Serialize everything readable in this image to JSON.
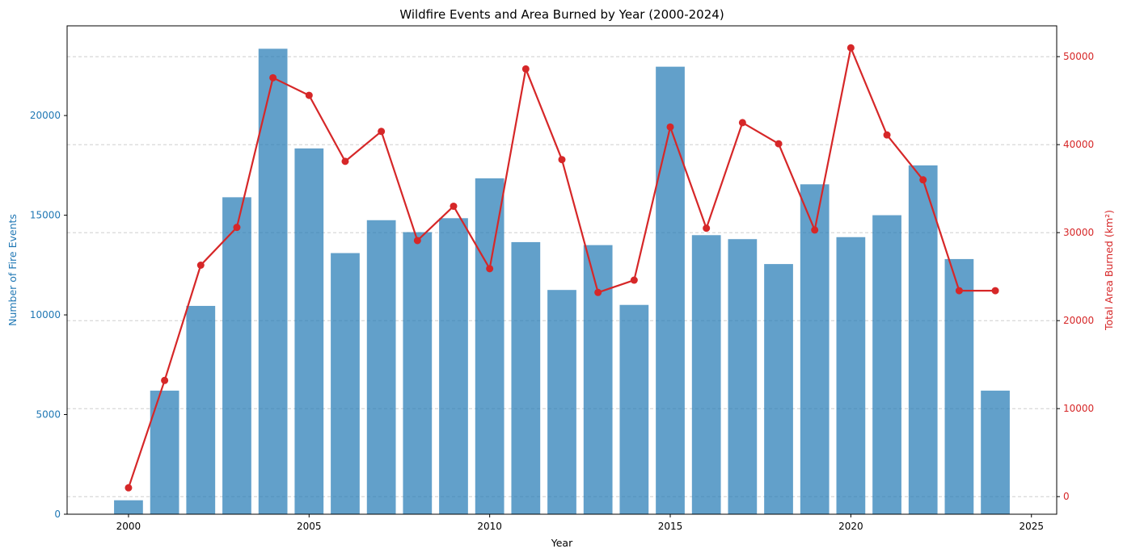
{
  "chart_data": {
    "type": "bar+line",
    "title": "Wildfire Events and Area Burned by Year (2000-2024)",
    "xlabel": "Year",
    "ylabel_left": "Number of Fire Events",
    "ylabel_right": "Total Area Burned (km²)",
    "xlim": [
      1998.3,
      2025.7
    ],
    "ylim_left": [
      0,
      24500
    ],
    "ylim_right": [
      -2000,
      53500
    ],
    "x_ticks": [
      2000,
      2005,
      2010,
      2015,
      2020,
      2025
    ],
    "y_ticks_left": [
      0,
      5000,
      10000,
      15000,
      20000
    ],
    "y_ticks_right": [
      0,
      10000,
      20000,
      30000,
      40000,
      50000
    ],
    "grid": "horizontal dashed (right axis)",
    "colors": {
      "bars": "#1f77b4",
      "line": "#d62728"
    },
    "years": [
      2000,
      2001,
      2002,
      2003,
      2004,
      2005,
      2006,
      2007,
      2008,
      2009,
      2010,
      2011,
      2012,
      2013,
      2014,
      2015,
      2016,
      2017,
      2018,
      2019,
      2020,
      2021,
      2022,
      2023,
      2024
    ],
    "series": [
      {
        "kind": "bar",
        "axis": "left",
        "values": [
          700,
          6200,
          10450,
          15900,
          23350,
          18350,
          13100,
          14750,
          14150,
          14850,
          16850,
          13650,
          11250,
          13500,
          10500,
          22450,
          14000,
          13800,
          12550,
          16550,
          13900,
          15000,
          17500,
          12800,
          6200
        ]
      },
      {
        "kind": "line",
        "axis": "right",
        "values": [
          1000,
          13200,
          26300,
          30600,
          47600,
          45600,
          38100,
          41500,
          29100,
          33000,
          25900,
          48600,
          38300,
          23200,
          24600,
          42000,
          30500,
          42500,
          40100,
          30300,
          51000,
          41100,
          36000,
          23400,
          23400
        ]
      }
    ]
  }
}
